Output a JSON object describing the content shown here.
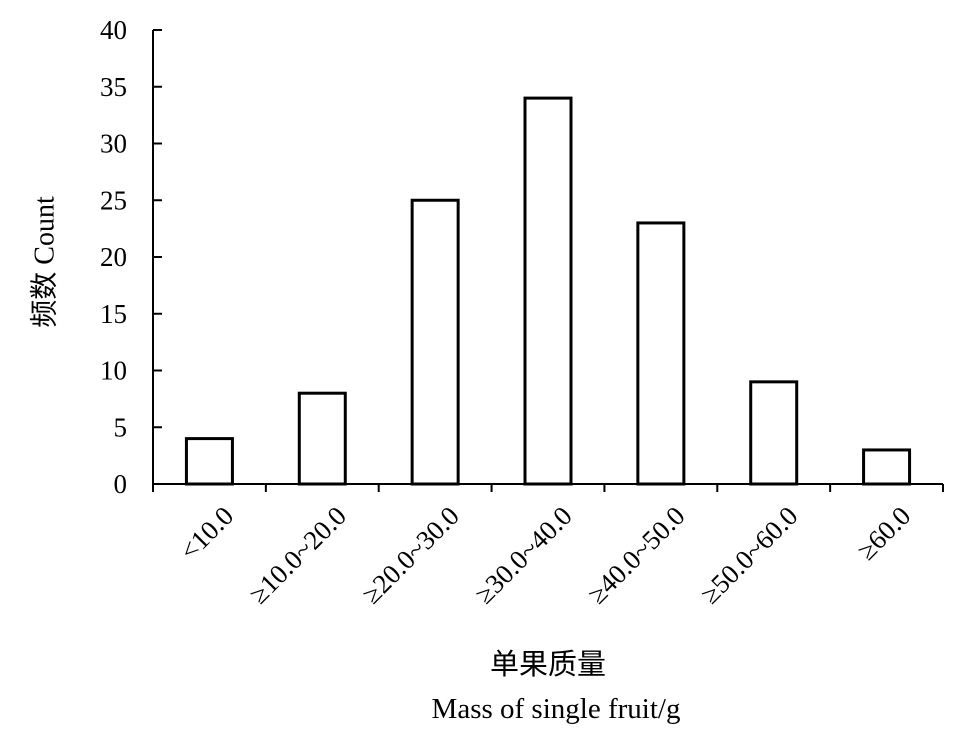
{
  "chart_data": {
    "type": "bar",
    "categories": [
      "<10.0",
      "≥10.0~20.0",
      "≥20.0~30.0",
      "≥30.0~40.0",
      "≥40.0~50.0",
      "≥50.0~60.0",
      "≥60.0"
    ],
    "values": [
      4,
      8,
      25,
      34,
      23,
      9,
      3
    ],
    "title": "",
    "xlabel_zh": "单果质量",
    "xlabel_en": "Mass of single fruit/g",
    "ylabel": "频数 Count",
    "ylim": [
      0,
      40
    ],
    "yticks": [
      0,
      5,
      10,
      15,
      20,
      25,
      30,
      35,
      40
    ],
    "grid": false,
    "bar_fill": "#ffffff",
    "bar_stroke": "#000000"
  }
}
